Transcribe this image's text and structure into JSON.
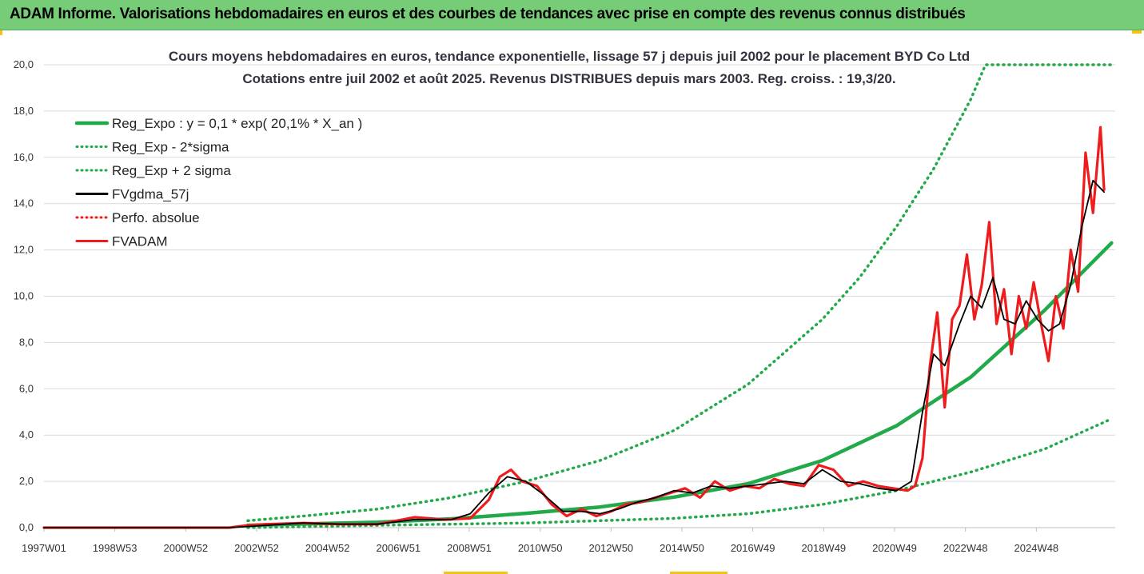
{
  "header": {
    "title": "ADAM Informe. Valorisations hebdomadaires en euros et des courbes de tendances avec prise en compte des revenus connus distribués"
  },
  "colors": {
    "banner": "#77cc77",
    "accent_yellow": "#f2c418",
    "reg_green": "#22a94a",
    "smooth_black": "#000000",
    "price_red": "#ee1c1c",
    "gridline": "#d9d9d9"
  },
  "chart_data": {
    "type": "line",
    "title": "Cours moyens hebdomadaires en euros, tendance exponentielle, lissage 57 j depuis juil 2002 pour le placement BYD Co Ltd",
    "subtitle": "Cotations entre juil 2002 et août 2025. Revenus DISTRIBUES depuis mars 2003. Reg. croiss. : 19,3/20.",
    "xlabel": "",
    "ylabel": "",
    "ylim": [
      0,
      20
    ],
    "grid": "horizontal",
    "legend_position": "top-left",
    "x_tick_labels": [
      "1997W01",
      "1998W53",
      "2000W52",
      "2002W52",
      "2004W52",
      "2006W51",
      "2008W51",
      "2010W50",
      "2012W50",
      "2014W50",
      "2016W49",
      "2018W49",
      "2020W49",
      "2022W48",
      "2024W48"
    ],
    "y_tick_labels": [
      "0,0",
      "2,0",
      "4,0",
      "6,0",
      "8,0",
      "10,0",
      "12,0",
      "14,0",
      "16,0",
      "18,0",
      "20,0"
    ],
    "legend": [
      {
        "label": "Reg_Expo : y = 0,1 * exp( 20,1% *  X_an )",
        "style": "solid",
        "color": "#22a94a"
      },
      {
        "label": "Reg_Exp - 2*sigma",
        "style": "dotted",
        "color": "#22a94a"
      },
      {
        "label": "Reg_Exp + 2 sigma",
        "style": "dotted",
        "color": "#22a94a"
      },
      {
        "label": "FVgdma_57j",
        "style": "solid",
        "color": "#000000"
      },
      {
        "label": "Perfo. absolue",
        "style": "dotted",
        "color": "#ee1c1c"
      },
      {
        "label": "FVADAM",
        "style": "solid",
        "color": "#ee1c1c"
      }
    ],
    "series": [
      {
        "name": "FVADAM",
        "x": [
          1997.0,
          2002.0,
          2002.5,
          2003.0,
          2004.0,
          2005.0,
          2006.0,
          2007.0,
          2007.8,
          2008.5,
          2009.0,
          2009.3,
          2009.6,
          2009.9,
          2010.3,
          2010.7,
          2011.1,
          2011.5,
          2011.9,
          2012.3,
          2012.7,
          2013.1,
          2013.5,
          2013.9,
          2014.3,
          2014.7,
          2015.1,
          2015.5,
          2015.9,
          2016.3,
          2016.7,
          2017.1,
          2017.5,
          2017.9,
          2018.3,
          2018.7,
          2019.1,
          2019.5,
          2019.9,
          2020.3,
          2020.5,
          2020.7,
          2020.9,
          2021.1,
          2021.3,
          2021.5,
          2021.7,
          2021.9,
          2022.1,
          2022.3,
          2022.5,
          2022.7,
          2022.9,
          2023.1,
          2023.3,
          2023.5,
          2023.7,
          2023.9,
          2024.1,
          2024.3,
          2024.5,
          2024.7,
          2024.9,
          2025.1,
          2025.3,
          2025.5,
          2025.6
        ],
        "y": [
          0,
          0,
          0.1,
          0.15,
          0.2,
          0.15,
          0.15,
          0.45,
          0.35,
          0.4,
          1.2,
          2.2,
          2.5,
          2.0,
          1.8,
          1.0,
          0.5,
          0.8,
          0.5,
          0.7,
          1.0,
          1.1,
          1.3,
          1.5,
          1.7,
          1.3,
          2.0,
          1.6,
          1.8,
          1.7,
          2.1,
          1.9,
          1.8,
          2.7,
          2.5,
          1.8,
          2.0,
          1.8,
          1.7,
          1.6,
          1.8,
          3.0,
          7.0,
          9.3,
          5.2,
          9.0,
          9.6,
          11.8,
          9.0,
          10.5,
          13.2,
          8.8,
          10.3,
          7.5,
          10.0,
          8.6,
          10.6,
          8.8,
          7.2,
          10.0,
          8.6,
          12.0,
          10.2,
          16.2,
          13.6,
          17.3,
          14.6
        ]
      },
      {
        "name": "FVgdma_57j",
        "x": [
          1997.0,
          2002.0,
          2003.0,
          2004.0,
          2005.0,
          2006.0,
          2007.0,
          2008.0,
          2008.5,
          2009.0,
          2009.5,
          2010.0,
          2010.5,
          2011.0,
          2011.5,
          2012.0,
          2012.5,
          2013.0,
          2013.5,
          2014.0,
          2014.5,
          2015.0,
          2015.5,
          2016.0,
          2016.5,
          2017.0,
          2017.5,
          2018.0,
          2018.5,
          2019.0,
          2019.5,
          2020.0,
          2020.4,
          2020.7,
          2021.0,
          2021.3,
          2021.7,
          2022.0,
          2022.3,
          2022.6,
          2022.9,
          2023.2,
          2023.5,
          2023.8,
          2024.1,
          2024.4,
          2024.7,
          2025.0,
          2025.3,
          2025.6
        ],
        "y": [
          0,
          0,
          0.1,
          0.2,
          0.15,
          0.15,
          0.35,
          0.35,
          0.6,
          1.5,
          2.2,
          2.0,
          1.4,
          0.7,
          0.7,
          0.6,
          0.8,
          1.1,
          1.3,
          1.6,
          1.5,
          1.8,
          1.7,
          1.8,
          1.9,
          2.0,
          1.9,
          2.5,
          2.0,
          1.9,
          1.7,
          1.6,
          2.0,
          5.0,
          7.5,
          7.0,
          8.8,
          10.0,
          9.5,
          10.8,
          9.0,
          8.8,
          9.8,
          9.0,
          8.5,
          8.8,
          10.5,
          13.0,
          15.0,
          14.5
        ]
      },
      {
        "name": "Reg_Expo : y = 0,1 * exp( 20,1% *  X_an )",
        "x": [
          2002.5,
          2004.0,
          2006.0,
          2008.0,
          2010.0,
          2012.0,
          2014.0,
          2016.0,
          2018.0,
          2020.0,
          2022.0,
          2024.0,
          2025.8
        ],
        "y": [
          0.1,
          0.16,
          0.23,
          0.38,
          0.62,
          0.89,
          1.32,
          1.9,
          2.9,
          4.4,
          6.5,
          9.4,
          12.3
        ]
      },
      {
        "name": "Reg_Exp - 2*sigma",
        "x": [
          2002.5,
          2006.0,
          2010.0,
          2014.0,
          2016.0,
          2018.0,
          2020.0,
          2022.0,
          2024.0,
          2025.8
        ],
        "y": [
          0.0,
          0.1,
          0.2,
          0.4,
          0.6,
          1.0,
          1.6,
          2.4,
          3.4,
          4.7
        ]
      },
      {
        "name": "Reg_Exp + 2 sigma",
        "x": [
          2002.5,
          2004.0,
          2006.0,
          2008.0,
          2010.0,
          2012.0,
          2014.0,
          2016.0,
          2018.0,
          2019.0,
          2020.0,
          2021.0,
          2022.0,
          2022.4,
          2023.0,
          2025.8
        ],
        "y": [
          0.3,
          0.5,
          0.8,
          1.3,
          2.0,
          2.9,
          4.2,
          6.2,
          9.0,
          10.8,
          13.0,
          15.5,
          18.5,
          20.0,
          20.0,
          20.0
        ]
      }
    ]
  }
}
